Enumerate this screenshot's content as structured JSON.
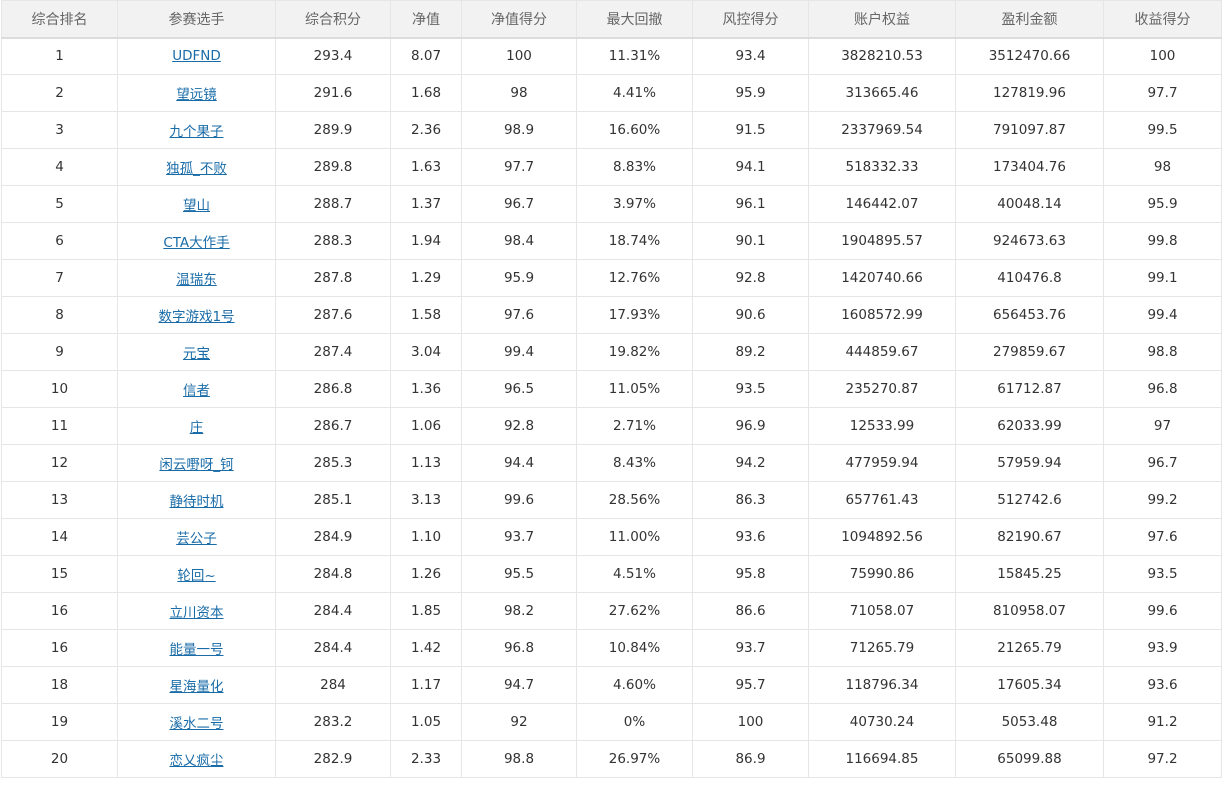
{
  "table": {
    "headers": [
      "综合排名",
      "参赛选手",
      "综合积分",
      "净值",
      "净值得分",
      "最大回撤",
      "风控得分",
      "账户权益",
      "盈利金额",
      "收益得分"
    ],
    "rows": [
      [
        "1",
        "UDFND",
        "293.4",
        "8.07",
        "100",
        "11.31%",
        "93.4",
        "3828210.53",
        "3512470.66",
        "100"
      ],
      [
        "2",
        "望远镜",
        "291.6",
        "1.68",
        "98",
        "4.41%",
        "95.9",
        "313665.46",
        "127819.96",
        "97.7"
      ],
      [
        "3",
        "九个果子",
        "289.9",
        "2.36",
        "98.9",
        "16.60%",
        "91.5",
        "2337969.54",
        "791097.87",
        "99.5"
      ],
      [
        "4",
        "独孤_不败",
        "289.8",
        "1.63",
        "97.7",
        "8.83%",
        "94.1",
        "518332.33",
        "173404.76",
        "98"
      ],
      [
        "5",
        "望山",
        "288.7",
        "1.37",
        "96.7",
        "3.97%",
        "96.1",
        "146442.07",
        "40048.14",
        "95.9"
      ],
      [
        "6",
        "CTA大作手",
        "288.3",
        "1.94",
        "98.4",
        "18.74%",
        "90.1",
        "1904895.57",
        "924673.63",
        "99.8"
      ],
      [
        "7",
        "温瑞东",
        "287.8",
        "1.29",
        "95.9",
        "12.76%",
        "92.8",
        "1420740.66",
        "410476.8",
        "99.1"
      ],
      [
        "8",
        "数字游戏1号",
        "287.6",
        "1.58",
        "97.6",
        "17.93%",
        "90.6",
        "1608572.99",
        "656453.76",
        "99.4"
      ],
      [
        "9",
        "元宝",
        "287.4",
        "3.04",
        "99.4",
        "19.82%",
        "89.2",
        "444859.67",
        "279859.67",
        "98.8"
      ],
      [
        "10",
        "信者",
        "286.8",
        "1.36",
        "96.5",
        "11.05%",
        "93.5",
        "235270.87",
        "61712.87",
        "96.8"
      ],
      [
        "11",
        "庄",
        "286.7",
        "1.06",
        "92.8",
        "2.71%",
        "96.9",
        "12533.99",
        "62033.99",
        "97"
      ],
      [
        "12",
        "闲云嘢呀_钶",
        "285.3",
        "1.13",
        "94.4",
        "8.43%",
        "94.2",
        "477959.94",
        "57959.94",
        "96.7"
      ],
      [
        "13",
        "静待时机",
        "285.1",
        "3.13",
        "99.6",
        "28.56%",
        "86.3",
        "657761.43",
        "512742.6",
        "99.2"
      ],
      [
        "14",
        "芸公子",
        "284.9",
        "1.10",
        "93.7",
        "11.00%",
        "93.6",
        "1094892.56",
        "82190.67",
        "97.6"
      ],
      [
        "15",
        "轮回~",
        "284.8",
        "1.26",
        "95.5",
        "4.51%",
        "95.8",
        "75990.86",
        "15845.25",
        "93.5"
      ],
      [
        "16",
        "立川资本",
        "284.4",
        "1.85",
        "98.2",
        "27.62%",
        "86.6",
        "71058.07",
        "810958.07",
        "99.6"
      ],
      [
        "16",
        "能量一号",
        "284.4",
        "1.42",
        "96.8",
        "10.84%",
        "93.7",
        "71265.79",
        "21265.79",
        "93.9"
      ],
      [
        "18",
        "星海量化",
        "284",
        "1.17",
        "94.7",
        "4.60%",
        "95.7",
        "118796.34",
        "17605.34",
        "93.6"
      ],
      [
        "19",
        "溪水二号",
        "283.2",
        "1.05",
        "92",
        "0%",
        "100",
        "40730.24",
        "5053.48",
        "91.2"
      ],
      [
        "20",
        "恋乂疯尘",
        "282.9",
        "2.33",
        "98.8",
        "26.97%",
        "86.9",
        "116694.85",
        "65099.88",
        "97.2"
      ]
    ]
  },
  "colors": {
    "header_bg": "#f2f2f2",
    "border": "#e6e6e6",
    "link": "#1a6ca8",
    "text": "#333333"
  }
}
